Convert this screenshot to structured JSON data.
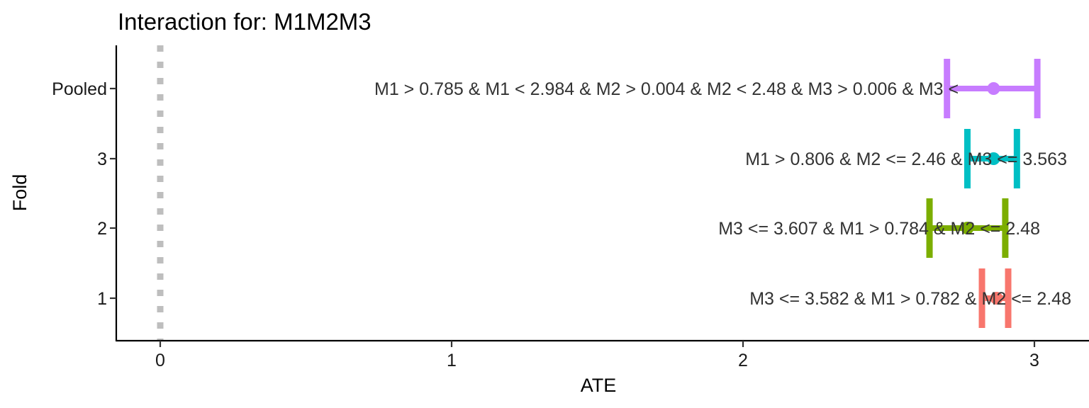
{
  "chart_data": {
    "type": "errorbar",
    "title": "Interaction for: M1M2M3",
    "xlabel": "ATE",
    "ylabel": "Fold",
    "xlim": [
      -0.15,
      3.15
    ],
    "x_ticks": [
      0,
      1,
      2,
      3
    ],
    "x_tick_labels": [
      "0",
      "1",
      "2",
      "3"
    ],
    "categories": [
      "1",
      "2",
      "3",
      "Pooled"
    ],
    "reference_line": {
      "x": 0,
      "style": "dotted",
      "color": "#bebebe"
    },
    "series": [
      {
        "fold": "1",
        "estimate": 2.87,
        "lower": 2.82,
        "upper": 2.91,
        "color": "#F8766D",
        "label": "M3 <= 3.582 & M1 > 0.782 & M2 <= 2.48"
      },
      {
        "fold": "2",
        "estimate": 2.77,
        "lower": 2.64,
        "upper": 2.9,
        "color": "#7CAE00",
        "label": "M3 <= 3.607 & M1 > 0.784 & M2 <= 2.48"
      },
      {
        "fold": "3",
        "estimate": 2.86,
        "lower": 2.77,
        "upper": 2.94,
        "color": "#00BFC4",
        "label": "M1 > 0.806 & M2 <= 2.46 & M3 <= 3.563"
      },
      {
        "fold": "Pooled",
        "estimate": 2.86,
        "lower": 2.7,
        "upper": 3.01,
        "color": "#C77CFF",
        "label": "M1 > 0.785 & M1 < 2.984 & M2 > 0.004 & M2 < 2.48 & M3 > 0.006 & M3 <"
      }
    ],
    "grid": false,
    "legend": "none"
  }
}
